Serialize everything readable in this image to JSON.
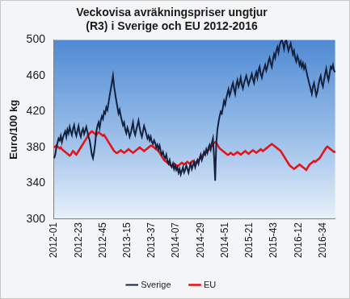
{
  "chart_data": {
    "type": "line",
    "title": [
      "Veckovisa avräkningspriser ungtjur",
      "(R3) i Sverige och EU 2012-2016"
    ],
    "y_label": "Euro/100 kg",
    "categories": [
      "2012-01",
      null,
      null,
      null,
      null,
      null,
      null,
      null,
      null,
      null,
      null,
      null,
      null,
      null,
      null,
      null,
      null,
      null,
      null,
      null,
      null,
      null,
      "2012-23",
      null,
      null,
      null,
      null,
      null,
      null,
      null,
      null,
      null,
      null,
      null,
      null,
      null,
      null,
      null,
      null,
      null,
      null,
      null,
      null,
      null,
      "2012-45",
      null,
      null,
      null,
      null,
      null,
      null,
      null,
      null,
      null,
      null,
      null,
      null,
      null,
      null,
      null,
      null,
      null,
      null,
      null,
      null,
      null,
      "2013-15",
      null,
      null,
      null,
      null,
      null,
      null,
      null,
      null,
      null,
      null,
      null,
      null,
      null,
      null,
      null,
      null,
      null,
      null,
      null,
      null,
      null,
      "2013-37",
      null,
      null,
      null,
      null,
      null,
      null,
      null,
      null,
      null,
      null,
      null,
      null,
      null,
      null,
      null,
      null,
      null,
      null,
      null,
      null,
      null,
      "2014-07",
      null,
      null,
      null,
      null,
      null,
      null,
      null,
      null,
      null,
      null,
      null,
      null,
      null,
      null,
      null,
      null,
      null,
      null,
      null,
      null,
      null,
      "2014-29",
      null,
      null,
      null,
      null,
      null,
      null,
      null,
      null,
      null,
      null,
      null,
      null,
      null,
      null,
      null,
      null,
      null,
      null,
      null,
      null,
      null,
      "2014-51",
      null,
      null,
      null,
      null,
      null,
      null,
      null,
      null,
      null,
      null,
      null,
      null,
      null,
      null,
      null,
      null,
      null,
      null,
      null,
      null,
      null,
      "2015-21",
      null,
      null,
      null,
      null,
      null,
      null,
      null,
      null,
      null,
      null,
      null,
      null,
      null,
      null,
      null,
      null,
      null,
      null,
      null,
      null,
      null,
      "2015-43",
      null,
      null,
      null,
      null,
      null,
      null,
      null,
      null,
      null,
      null,
      null,
      null,
      null,
      null,
      null,
      null,
      null,
      null,
      null,
      null,
      null,
      "2016-12",
      null,
      null,
      null,
      null,
      null,
      null,
      null,
      null,
      null,
      null,
      null,
      null,
      null,
      null,
      null,
      null,
      null,
      null,
      null,
      null,
      null,
      "2016-34",
      null,
      null,
      null,
      null,
      null,
      null,
      null,
      null,
      null,
      null,
      null
    ],
    "series": [
      {
        "name": "Sverige",
        "color": "#14213d",
        "values": [
          368,
          372,
          380,
          385,
          390,
          388,
          393,
          386,
          391,
          395,
          398,
          392,
          400,
          396,
          403,
          398,
          394,
          401,
          405,
          397,
          393,
          399,
          404,
          396,
          392,
          398,
          401,
          395,
          399,
          403,
          397,
          392,
          388,
          380,
          372,
          368,
          375,
          385,
          398,
          404,
          408,
          402,
          410,
          415,
          412,
          420,
          418,
          425,
          422,
          430,
          438,
          445,
          452,
          460,
          448,
          440,
          432,
          425,
          418,
          422,
          415,
          410,
          405,
          408,
          400,
          396,
          402,
          398,
          392,
          396,
          402,
          408,
          398,
          394,
          400,
          405,
          410,
          402,
          396,
          392,
          398,
          404,
          400,
          395,
          390,
          393,
          388,
          392,
          386,
          384,
          388,
          385,
          380,
          383,
          378,
          382,
          376,
          372,
          375,
          370,
          368,
          372,
          365,
          362,
          366,
          360,
          358,
          362,
          356,
          360,
          355,
          358,
          352,
          356,
          350,
          354,
          358,
          352,
          355,
          360,
          356,
          352,
          358,
          362,
          356,
          360,
          364,
          358,
          362,
          366,
          362,
          368,
          372,
          366,
          370,
          375,
          372,
          378,
          374,
          380,
          383,
          378,
          385,
          390,
          370,
          343,
          385,
          400,
          408,
          415,
          420,
          418,
          425,
          432,
          428,
          435,
          440,
          445,
          438,
          442,
          448,
          452,
          445,
          440,
          450,
          455,
          448,
          452,
          458,
          450,
          446,
          452,
          456,
          460,
          455,
          450,
          454,
          458,
          462,
          456,
          452,
          460,
          464,
          458,
          466,
          470,
          462,
          458,
          464,
          468,
          472,
          466,
          470,
          476,
          480,
          474,
          470,
          478,
          484,
          480,
          488,
          492,
          486,
          494,
          498,
          500,
          496,
          490,
          498,
          500,
          494,
          488,
          492,
          496,
          490,
          484,
          488,
          480,
          476,
          482,
          478,
          472,
          476,
          470,
          474,
          468,
          472,
          466,
          460,
          455,
          450,
          445,
          440,
          448,
          452,
          445,
          438,
          442,
          450,
          456,
          460,
          452,
          448,
          455,
          462,
          468,
          460,
          455,
          462,
          470,
          468,
          472,
          466,
          464
        ]
      },
      {
        "name": "EU",
        "color": "#e3141b",
        "values": [
          380,
          381,
          382,
          381,
          380,
          379,
          380,
          378,
          377,
          376,
          375,
          374,
          373,
          372,
          371,
          372,
          374,
          376,
          375,
          373,
          372,
          374,
          376,
          378,
          380,
          382,
          384,
          386,
          388,
          390,
          392,
          394,
          396,
          397,
          398,
          397,
          396,
          395,
          394,
          396,
          397,
          396,
          395,
          394,
          393,
          394,
          392,
          390,
          388,
          386,
          384,
          382,
          380,
          378,
          376,
          375,
          374,
          374,
          375,
          376,
          377,
          376,
          375,
          374,
          375,
          376,
          377,
          378,
          377,
          376,
          375,
          374,
          375,
          376,
          377,
          378,
          379,
          380,
          379,
          378,
          377,
          376,
          377,
          378,
          379,
          380,
          381,
          382,
          382,
          381,
          380,
          379,
          378,
          377,
          376,
          374,
          372,
          370,
          368,
          366,
          365,
          364,
          363,
          362,
          361,
          360,
          360,
          361,
          362,
          361,
          360,
          359,
          360,
          361,
          362,
          363,
          362,
          361,
          362,
          363,
          364,
          363,
          362,
          363,
          364,
          365,
          364,
          363,
          364,
          365,
          366,
          367,
          368,
          370,
          372,
          373,
          374,
          375,
          376,
          377,
          378,
          380,
          382,
          384,
          385,
          386,
          385,
          383,
          381,
          379,
          378,
          377,
          376,
          375,
          374,
          373,
          372,
          372,
          373,
          374,
          373,
          372,
          372,
          373,
          374,
          375,
          374,
          373,
          372,
          373,
          374,
          375,
          376,
          375,
          374,
          373,
          374,
          375,
          376,
          377,
          376,
          375,
          374,
          375,
          376,
          377,
          378,
          377,
          376,
          377,
          378,
          379,
          380,
          381,
          382,
          383,
          384,
          383,
          382,
          381,
          380,
          379,
          378,
          377,
          376,
          374,
          372,
          370,
          368,
          366,
          364,
          362,
          360,
          359,
          358,
          357,
          356,
          357,
          358,
          359,
          360,
          361,
          360,
          359,
          358,
          357,
          356,
          355,
          357,
          359,
          361,
          362,
          363,
          364,
          365,
          364,
          365,
          366,
          367,
          368,
          370,
          372,
          374,
          376,
          378,
          380,
          381,
          380,
          379,
          378,
          377,
          376,
          375,
          376
        ]
      }
    ],
    "ylim": [
      300,
      500
    ],
    "yticks": [
      300,
      340,
      380,
      420,
      460,
      500
    ],
    "grid": false,
    "legend": "bottom"
  }
}
